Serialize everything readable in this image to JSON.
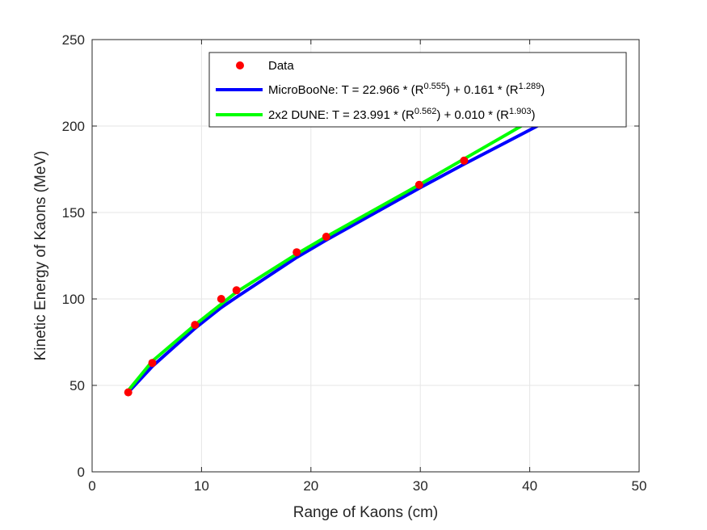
{
  "chart_data": {
    "type": "scatter",
    "title": "",
    "xlabel": "Range of Kaons (cm)",
    "ylabel": "Kinetic Energy of Kaons (MeV)",
    "xlim": [
      0,
      50
    ],
    "ylim": [
      0,
      250
    ],
    "xticks": [
      0,
      10,
      20,
      30,
      40,
      50
    ],
    "yticks": [
      0,
      50,
      100,
      150,
      200,
      250
    ],
    "grid": true,
    "legend_position": "top-right",
    "series": [
      {
        "name": "Data",
        "kind": "points",
        "color": "#ff0000",
        "x": [
          3.3,
          5.5,
          9.4,
          11.8,
          13.2,
          18.7,
          21.4,
          29.9,
          34.0
        ],
        "y": [
          46,
          63,
          85,
          100,
          105,
          127,
          136,
          166,
          180
        ]
      },
      {
        "name": "MicroBooNe",
        "kind": "line",
        "color": "#0000ff",
        "equation": {
          "lhs": "T = 22.966 * (R",
          "exp1": "0.555",
          "mid": ") + 0.161 * (R",
          "exp2": "1.289",
          "end": ")"
        },
        "coefficients": {
          "a": 22.966,
          "p": 0.555,
          "b": 0.161,
          "q": 1.289
        },
        "x": [
          3.3,
          5.5,
          9.4,
          11.8,
          13.2,
          18.7,
          21.4,
          29.9,
          34.0,
          41.0
        ],
        "y": [
          46,
          61,
          83,
          95,
          101,
          124,
          134,
          164,
          178,
          201
        ]
      },
      {
        "name": "2x2 DUNE",
        "kind": "line",
        "color": "#00ff00",
        "equation": {
          "lhs": "T = 23.991 * (R",
          "exp1": "0.562",
          "mid": ") + 0.010 * (R",
          "exp2": "1.903",
          "end": ")"
        },
        "coefficients": {
          "a": 23.991,
          "p": 0.562,
          "b": 0.01,
          "q": 1.903
        },
        "x": [
          3.3,
          5.5,
          9.4,
          11.8,
          13.2,
          18.7,
          21.4,
          29.9,
          34.0,
          39.5
        ],
        "y": [
          47,
          64,
          85,
          97,
          104,
          126,
          136,
          166,
          181,
          201
        ]
      }
    ]
  }
}
